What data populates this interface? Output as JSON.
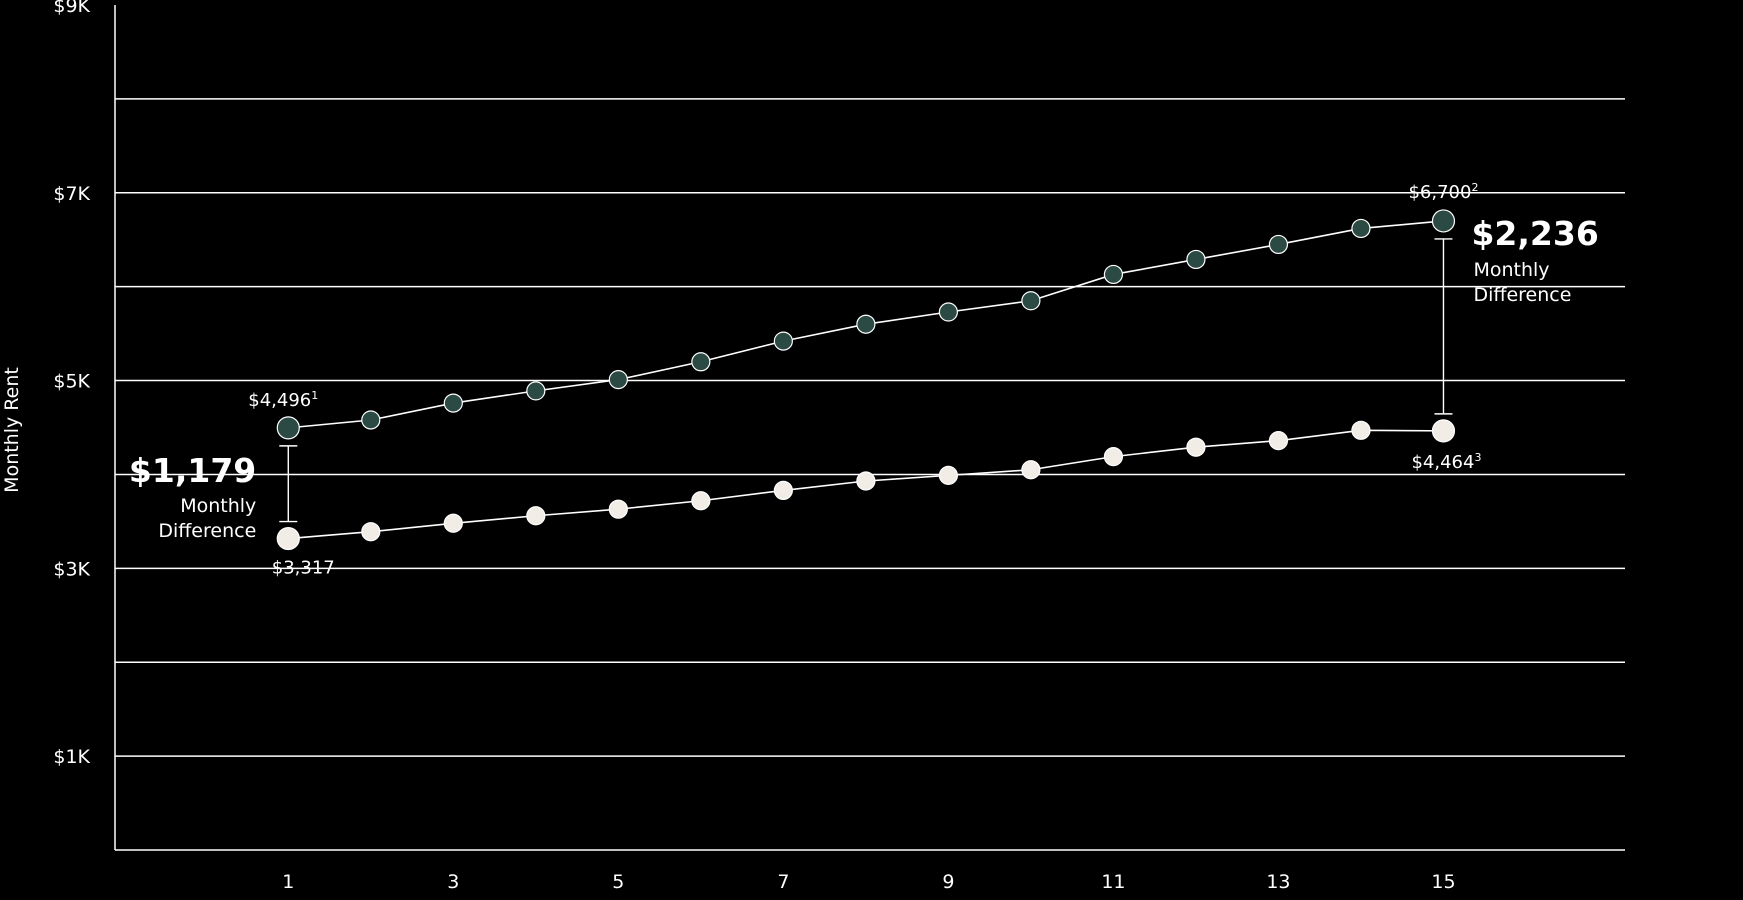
{
  "chart_data": {
    "type": "line",
    "ylabel": "Monthly Rent",
    "xlabel": "",
    "xlim": [
      -1.1,
      17.2
    ],
    "ylim": [
      0,
      9000
    ],
    "x_ticks": [
      1,
      3,
      5,
      7,
      9,
      11,
      13,
      15
    ],
    "x_tick_labels": [
      "1",
      "3",
      "5",
      "7",
      "9",
      "11",
      "13",
      "15"
    ],
    "y_ticks": [
      1000,
      3000,
      5000,
      7000,
      9000
    ],
    "y_tick_labels": [
      "$1K",
      "$3K",
      "$5K",
      "$7K",
      "$9K"
    ],
    "gridlines": [
      1000,
      2000,
      3000,
      4000,
      5000,
      6000,
      7000,
      8000
    ],
    "series": [
      {
        "key": "upper",
        "color": "#2b4a43",
        "x": [
          1,
          2,
          3,
          4,
          5,
          6,
          7,
          8,
          9,
          10,
          11,
          12,
          13,
          14,
          15
        ],
        "values": [
          4496,
          4580,
          4760,
          4890,
          5010,
          5200,
          5420,
          5600,
          5730,
          5850,
          6130,
          6290,
          6450,
          6620,
          6700
        ]
      },
      {
        "key": "lower",
        "color": "#f1ece6",
        "x": [
          1,
          2,
          3,
          4,
          5,
          6,
          7,
          8,
          9,
          10,
          11,
          12,
          13,
          14,
          15
        ],
        "values": [
          3317,
          3390,
          3480,
          3560,
          3630,
          3720,
          3830,
          3930,
          3990,
          4050,
          4190,
          4290,
          4360,
          4470,
          4464
        ]
      }
    ],
    "annotations": {
      "start_upper": {
        "text": "$4,496",
        "note": "1"
      },
      "start_lower": {
        "text": "$3,317",
        "note": ""
      },
      "end_upper": {
        "text": "$6,700",
        "note": "2"
      },
      "end_lower": {
        "text": "$4,464",
        "note": "3"
      },
      "start_diff": {
        "value": "$1,179",
        "line1": "Monthly",
        "line2": "Difference"
      },
      "end_diff": {
        "value": "$2,236",
        "line1": "Monthly",
        "line2": "Difference"
      }
    }
  }
}
